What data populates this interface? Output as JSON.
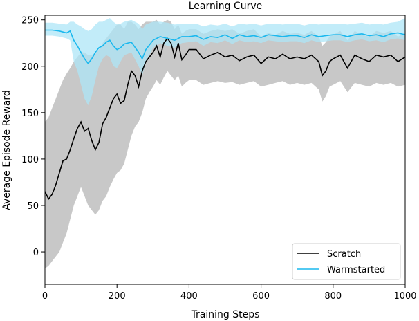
{
  "chart_data": {
    "type": "line",
    "title": "Learning Curve",
    "xlabel": "Training Steps",
    "ylabel": "Average Episode Reward",
    "xlim": [
      0,
      1000
    ],
    "ylim": [
      -35,
      255
    ],
    "xticks": [
      0,
      200,
      400,
      600,
      800,
      1000
    ],
    "yticks": [
      0,
      50,
      100,
      150,
      200,
      250
    ],
    "grid": false,
    "legend_position": "bottom-right",
    "colors": {
      "scratch_line": "#000000",
      "scratch_band": "#c8c8c8",
      "warm_line": "#1ab8ee",
      "warm_band": "#aee6f7"
    },
    "series": [
      {
        "name": "Scratch",
        "x": [
          0,
          10,
          20,
          30,
          40,
          50,
          60,
          70,
          80,
          90,
          100,
          110,
          120,
          130,
          140,
          150,
          160,
          170,
          180,
          190,
          200,
          210,
          220,
          230,
          240,
          250,
          260,
          270,
          280,
          290,
          300,
          310,
          320,
          330,
          340,
          350,
          360,
          370,
          380,
          390,
          400,
          420,
          440,
          460,
          480,
          500,
          520,
          540,
          560,
          580,
          600,
          620,
          640,
          660,
          680,
          700,
          720,
          740,
          760,
          770,
          780,
          790,
          800,
          820,
          840,
          860,
          880,
          900,
          920,
          940,
          960,
          980,
          1000
        ],
        "values": [
          65,
          57,
          62,
          72,
          85,
          98,
          100,
          110,
          122,
          133,
          140,
          130,
          133,
          120,
          110,
          118,
          138,
          145,
          155,
          165,
          170,
          160,
          163,
          180,
          195,
          190,
          178,
          195,
          205,
          210,
          215,
          222,
          210,
          225,
          230,
          225,
          210,
          225,
          207,
          212,
          218,
          218,
          208,
          212,
          215,
          210,
          212,
          206,
          210,
          212,
          203,
          210,
          208,
          213,
          208,
          210,
          208,
          212,
          205,
          190,
          195,
          205,
          208,
          212,
          198,
          212,
          208,
          205,
          212,
          210,
          212,
          205,
          210
        ],
        "lower": [
          -18,
          -15,
          -10,
          -5,
          0,
          10,
          20,
          35,
          50,
          60,
          70,
          60,
          50,
          45,
          40,
          45,
          55,
          60,
          70,
          78,
          85,
          88,
          95,
          110,
          125,
          135,
          140,
          150,
          165,
          172,
          178,
          185,
          180,
          188,
          195,
          190,
          185,
          190,
          178,
          182,
          185,
          185,
          180,
          182,
          184,
          182,
          183,
          180,
          182,
          184,
          178,
          180,
          182,
          184,
          180,
          182,
          180,
          182,
          175,
          162,
          168,
          178,
          180,
          184,
          172,
          182,
          180,
          178,
          182,
          180,
          182,
          178,
          180
        ],
        "upper": [
          140,
          145,
          155,
          165,
          175,
          185,
          192,
          198,
          205,
          210,
          215,
          215,
          212,
          212,
          215,
          218,
          225,
          230,
          235,
          240,
          245,
          245,
          240,
          248,
          248,
          245,
          240,
          245,
          248,
          248,
          248,
          250,
          245,
          248,
          250,
          248,
          240,
          245,
          235,
          238,
          240,
          240,
          235,
          238,
          240,
          238,
          240,
          235,
          238,
          240,
          232,
          236,
          234,
          238,
          235,
          236,
          234,
          238,
          232,
          222,
          226,
          232,
          234,
          238,
          228,
          238,
          234,
          232,
          238,
          236,
          238,
          232,
          236
        ]
      },
      {
        "name": "Warmstarted",
        "x": [
          0,
          20,
          40,
          60,
          70,
          80,
          90,
          100,
          110,
          120,
          130,
          140,
          150,
          160,
          170,
          180,
          190,
          200,
          210,
          220,
          240,
          260,
          270,
          280,
          300,
          320,
          340,
          360,
          380,
          400,
          420,
          440,
          460,
          480,
          500,
          520,
          540,
          560,
          580,
          600,
          620,
          640,
          660,
          680,
          700,
          720,
          740,
          760,
          780,
          800,
          820,
          840,
          860,
          880,
          900,
          920,
          940,
          960,
          980,
          1000
        ],
        "values": [
          239,
          239,
          238,
          236,
          238,
          228,
          222,
          215,
          208,
          203,
          208,
          215,
          220,
          222,
          226,
          228,
          222,
          218,
          220,
          224,
          226,
          215,
          208,
          218,
          228,
          232,
          230,
          228,
          232,
          232,
          233,
          229,
          232,
          231,
          234,
          230,
          234,
          232,
          233,
          231,
          234,
          233,
          232,
          233,
          233,
          231,
          234,
          232,
          233,
          234,
          234,
          232,
          234,
          235,
          233,
          234,
          232,
          235,
          236,
          234
        ],
        "lower": [
          233,
          233,
          232,
          230,
          228,
          205,
          195,
          180,
          165,
          158,
          168,
          185,
          200,
          208,
          212,
          210,
          200,
          198,
          205,
          212,
          215,
          200,
          190,
          205,
          220,
          225,
          222,
          220,
          225,
          226,
          227,
          222,
          226,
          225,
          228,
          224,
          228,
          226,
          227,
          225,
          228,
          227,
          226,
          227,
          227,
          225,
          228,
          226,
          227,
          228,
          228,
          226,
          228,
          229,
          227,
          228,
          226,
          229,
          230,
          228
        ],
        "upper": [
          247,
          247,
          246,
          245,
          248,
          248,
          245,
          243,
          240,
          238,
          240,
          245,
          248,
          248,
          250,
          252,
          248,
          245,
          246,
          248,
          250,
          246,
          240,
          245,
          248,
          248,
          247,
          245,
          246,
          246,
          246,
          243,
          245,
          244,
          246,
          243,
          246,
          245,
          246,
          244,
          246,
          246,
          245,
          246,
          246,
          244,
          246,
          245,
          246,
          246,
          246,
          245,
          246,
          247,
          245,
          246,
          245,
          247,
          248,
          252
        ]
      }
    ]
  }
}
